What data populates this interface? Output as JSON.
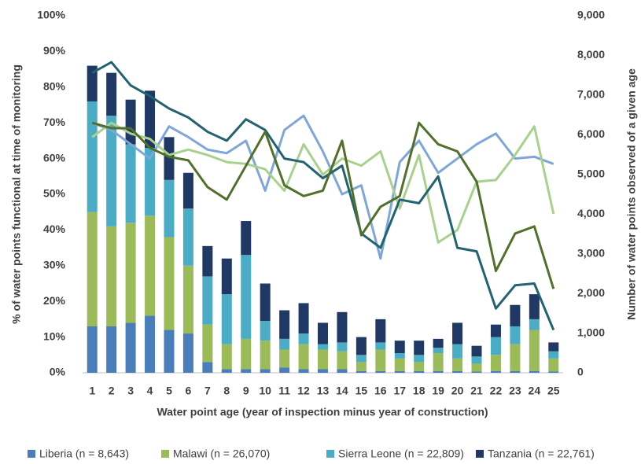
{
  "chart_data": {
    "type": "bar+line",
    "y_label": "% of water points functional at time of monitoring",
    "y2_label": "Number of water points observed of a given age",
    "x_label": "Water point age (year of inspection minus year of construction)",
    "categories": [
      "1",
      "2",
      "3",
      "4",
      "5",
      "6",
      "7",
      "8",
      "9",
      "10",
      "11",
      "12",
      "13",
      "14",
      "15",
      "16",
      "17",
      "18",
      "19",
      "20",
      "21",
      "22",
      "23",
      "24",
      "25"
    ],
    "ylim": [
      0,
      100
    ],
    "yticks": [
      {
        "value": 0,
        "label": "0%"
      },
      {
        "value": 10,
        "label": "10%"
      },
      {
        "value": 20,
        "label": "20%"
      },
      {
        "value": 30,
        "label": "30%"
      },
      {
        "value": 40,
        "label": "40%"
      },
      {
        "value": 50,
        "label": "50%"
      },
      {
        "value": 60,
        "label": "60%"
      },
      {
        "value": 70,
        "label": "70%"
      },
      {
        "value": 80,
        "label": "80%"
      },
      {
        "value": 90,
        "label": "90%"
      },
      {
        "value": 100,
        "label": "100%"
      }
    ],
    "y2lim": [
      0,
      9000
    ],
    "y2ticks": [
      0,
      {
        "value": 1000,
        "label": "1,000"
      },
      {
        "value": 2000,
        "label": "2,000"
      },
      {
        "value": 3000,
        "label": "3,000"
      },
      {
        "value": 4000,
        "label": "4,000"
      },
      {
        "value": 5000,
        "label": "5,000"
      },
      {
        "value": 6000,
        "label": "6,000"
      },
      {
        "value": 7000,
        "label": "7,000"
      },
      {
        "value": 8000,
        "label": "8,000"
      },
      {
        "value": 9000,
        "label": "9,000"
      }
    ],
    "series": [
      {
        "name": "Liberia (n = 8,643)",
        "color": "#4a7ebb",
        "kind": "bar",
        "axis": "y2",
        "values": [
          1170,
          1170,
          1260,
          1440,
          1080,
          990,
          270,
          90,
          90,
          90,
          135,
          90,
          90,
          90,
          45,
          45,
          45,
          45,
          45,
          45,
          30,
          45,
          45,
          45,
          30
        ]
      },
      {
        "name": "Malawi (n = 26,070)",
        "color": "#9bbb59",
        "kind": "bar",
        "axis": "y2",
        "values": [
          2880,
          2520,
          2520,
          2520,
          2340,
          1710,
          945,
          630,
          765,
          720,
          450,
          630,
          495,
          450,
          225,
          540,
          315,
          225,
          450,
          315,
          200,
          405,
          675,
          1035,
          330
        ]
      },
      {
        "name": "Sierra Leone (n = 22,809)",
        "color": "#4bacc6",
        "kind": "bar",
        "axis": "y2",
        "values": [
          2790,
          2790,
          1980,
          1710,
          1440,
          1440,
          1215,
          1260,
          2115,
          495,
          270,
          270,
          135,
          225,
          180,
          180,
          135,
          180,
          135,
          360,
          180,
          450,
          450,
          270,
          180
        ]
      },
      {
        "name": "Tanzania (n = 22,761)",
        "color": "#1f3864",
        "kind": "bar",
        "axis": "y2",
        "values": [
          900,
          1080,
          1125,
          1440,
          1080,
          900,
          765,
          900,
          855,
          945,
          720,
          765,
          540,
          765,
          450,
          585,
          315,
          360,
          225,
          540,
          270,
          315,
          540,
          630,
          225
        ]
      },
      {
        "color": "#7ea6d8",
        "kind": "line",
        "values": [
          70,
          68,
          64,
          60,
          69,
          66,
          62.5,
          61.5,
          65,
          51,
          68,
          72,
          62,
          50,
          52.5,
          32,
          59,
          65,
          56,
          60,
          64,
          67,
          60,
          60.5,
          58.5
        ]
      },
      {
        "color": "#a9d18e",
        "kind": "line",
        "values": [
          66,
          70,
          67,
          65.5,
          61,
          62.5,
          61,
          59,
          58.5,
          57,
          51,
          64,
          55.5,
          60,
          58,
          62,
          46,
          61,
          36.5,
          40,
          53.5,
          54,
          61,
          69,
          44.5
        ]
      },
      {
        "color": "#226370",
        "kind": "line",
        "values": [
          84,
          87,
          80.5,
          77.5,
          74,
          71.5,
          67.5,
          65,
          71,
          68,
          60,
          59,
          54.5,
          58,
          39,
          35,
          48.5,
          47.5,
          55,
          35,
          34,
          18,
          24.5,
          25,
          12
        ]
      },
      {
        "color": "#51702c",
        "kind": "line",
        "values": [
          70,
          68.5,
          68.5,
          63,
          60.5,
          59.5,
          52,
          48.5,
          58,
          67.5,
          52.5,
          49.5,
          51,
          65,
          38.5,
          46.5,
          49.5,
          70,
          64,
          62,
          53.5,
          28.5,
          39,
          41,
          23.5
        ]
      }
    ]
  }
}
